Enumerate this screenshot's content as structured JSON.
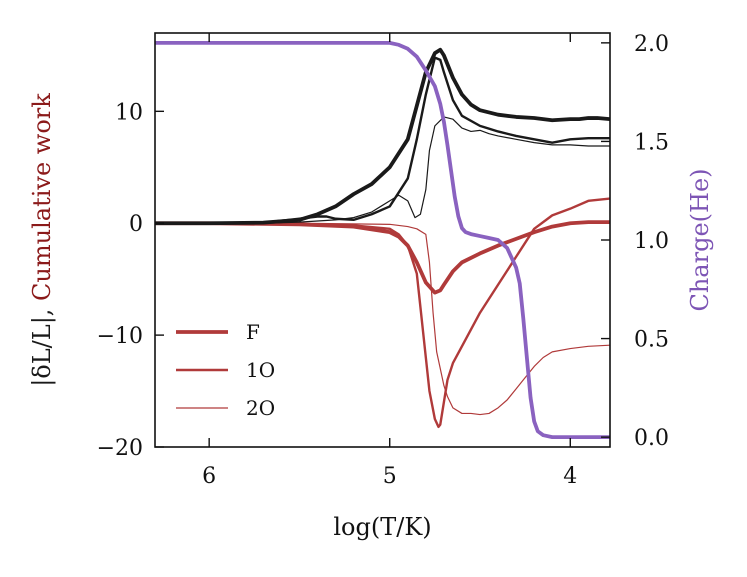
{
  "chart_data": {
    "type": "line",
    "xlabel": "log(T/K)",
    "ylabel_left_parts": [
      "|δL/L|",
      ", ",
      "Cumulative work"
    ],
    "ylabel_right": "Charge(He)",
    "xlim": [
      6.3,
      3.78
    ],
    "ylim_left": [
      -20,
      17
    ],
    "ylim_right": [
      -0.05,
      2.05
    ],
    "x_ticks": [
      6,
      5,
      4
    ],
    "x_tick_labels": [
      "6",
      "5",
      "4"
    ],
    "y_left_ticks": [
      10,
      0,
      -10,
      -20
    ],
    "y_left_tick_labels": [
      "10",
      "0",
      "−10",
      "−20"
    ],
    "y_right_ticks": [
      2.0,
      1.5,
      1.0,
      0.5,
      0.0
    ],
    "y_right_tick_labels": [
      "2.0",
      "1.5",
      "1.0",
      "0.5",
      "0.0"
    ],
    "colors": {
      "amplitude": "#1a1a1a",
      "work": "#b03a3a",
      "charge": "#8a62c0",
      "left_label_dark": "#1a1a1a",
      "left_label_red": "#8b1a1a",
      "right_label": "#7d55b5"
    },
    "legend": [
      {
        "label": "F",
        "width": 3.8
      },
      {
        "label": "1O",
        "width": 2.4
      },
      {
        "label": "2O",
        "width": 1.2
      }
    ],
    "series": [
      {
        "name": "F |dL/L|",
        "axis": "left",
        "kind": "amplitude",
        "width": 3.8,
        "x": [
          6.3,
          6.0,
          5.7,
          5.5,
          5.4,
          5.3,
          5.2,
          5.1,
          5.0,
          4.9,
          4.85,
          4.8,
          4.75,
          4.72,
          4.7,
          4.65,
          4.6,
          4.55,
          4.5,
          4.4,
          4.3,
          4.2,
          4.1,
          4.0,
          3.95,
          3.9,
          3.85,
          3.78
        ],
        "y": [
          0.0,
          0.0,
          0.05,
          0.3,
          0.8,
          1.5,
          2.6,
          3.5,
          5.0,
          7.5,
          10.5,
          13.5,
          15.2,
          15.5,
          15.0,
          13.0,
          11.5,
          10.6,
          10.1,
          9.7,
          9.5,
          9.4,
          9.2,
          9.3,
          9.3,
          9.4,
          9.4,
          9.3
        ]
      },
      {
        "name": "1O |dL/L|",
        "axis": "left",
        "kind": "amplitude",
        "width": 2.4,
        "x": [
          6.3,
          6.0,
          5.7,
          5.5,
          5.4,
          5.35,
          5.3,
          5.2,
          5.1,
          5.0,
          4.9,
          4.85,
          4.8,
          4.75,
          4.72,
          4.7,
          4.65,
          4.6,
          4.5,
          4.4,
          4.3,
          4.2,
          4.1,
          4.0,
          3.9,
          3.78
        ],
        "y": [
          0.0,
          0.0,
          0.05,
          0.4,
          0.6,
          0.6,
          0.4,
          0.3,
          0.8,
          1.5,
          4.0,
          7.5,
          11.5,
          14.8,
          14.6,
          13.5,
          11.0,
          9.6,
          8.7,
          8.2,
          7.8,
          7.5,
          7.2,
          7.5,
          7.6,
          7.6
        ]
      },
      {
        "name": "2O |dL/L|",
        "axis": "left",
        "kind": "amplitude",
        "width": 1.2,
        "x": [
          6.3,
          6.0,
          5.7,
          5.5,
          5.3,
          5.2,
          5.1,
          5.0,
          4.95,
          4.9,
          4.86,
          4.83,
          4.8,
          4.78,
          4.75,
          4.7,
          4.65,
          4.6,
          4.55,
          4.5,
          4.45,
          4.4,
          4.3,
          4.2,
          4.1,
          4.0,
          3.9,
          3.78
        ],
        "y": [
          0.0,
          0.0,
          0.0,
          0.1,
          0.3,
          0.5,
          1.0,
          2.0,
          2.5,
          2.0,
          0.5,
          0.8,
          3.0,
          6.5,
          8.7,
          9.5,
          9.3,
          8.5,
          8.2,
          8.3,
          8.0,
          7.8,
          7.5,
          7.2,
          7.0,
          7.0,
          6.9,
          6.9
        ]
      },
      {
        "name": "F work",
        "axis": "left",
        "kind": "work",
        "width": 3.8,
        "x": [
          6.3,
          6.0,
          5.5,
          5.2,
          5.0,
          4.95,
          4.9,
          4.85,
          4.8,
          4.75,
          4.72,
          4.7,
          4.65,
          4.6,
          4.5,
          4.4,
          4.3,
          4.2,
          4.1,
          4.0,
          3.9,
          3.78
        ],
        "y": [
          0.0,
          0.0,
          -0.1,
          -0.3,
          -0.8,
          -1.2,
          -2.0,
          -3.5,
          -5.3,
          -6.2,
          -6.0,
          -5.5,
          -4.3,
          -3.5,
          -2.7,
          -2.0,
          -1.4,
          -0.8,
          -0.3,
          0.0,
          0.1,
          0.1
        ]
      },
      {
        "name": "1O work",
        "axis": "left",
        "kind": "work",
        "width": 2.4,
        "x": [
          6.3,
          6.0,
          5.5,
          5.2,
          5.0,
          4.95,
          4.9,
          4.85,
          4.83,
          4.8,
          4.78,
          4.75,
          4.73,
          4.72,
          4.7,
          4.68,
          4.65,
          4.6,
          4.5,
          4.4,
          4.3,
          4.2,
          4.1,
          4.0,
          3.9,
          3.78
        ],
        "y": [
          0.0,
          0.0,
          -0.05,
          -0.2,
          -0.5,
          -1.0,
          -2.0,
          -4.5,
          -7.5,
          -12.0,
          -15.0,
          -17.5,
          -18.2,
          -18.0,
          -16.0,
          -14.0,
          -12.5,
          -11.0,
          -8.0,
          -5.5,
          -3.0,
          -0.5,
          0.7,
          1.3,
          2.0,
          2.2
        ]
      },
      {
        "name": "2O work",
        "axis": "left",
        "kind": "work",
        "width": 1.2,
        "x": [
          6.3,
          6.0,
          5.5,
          5.0,
          4.9,
          4.85,
          4.8,
          4.78,
          4.76,
          4.74,
          4.72,
          4.7,
          4.68,
          4.65,
          4.6,
          4.55,
          4.5,
          4.45,
          4.4,
          4.35,
          4.3,
          4.25,
          4.2,
          4.15,
          4.1,
          4.0,
          3.9,
          3.78
        ],
        "y": [
          0.0,
          0.0,
          0.0,
          -0.1,
          -0.3,
          -0.5,
          -1.0,
          -3.5,
          -8.0,
          -11.5,
          -13.0,
          -14.5,
          -15.5,
          -16.5,
          -17.0,
          -17.0,
          -17.1,
          -17.0,
          -16.5,
          -15.8,
          -14.8,
          -13.8,
          -12.8,
          -12.0,
          -11.5,
          -11.2,
          -11.0,
          -10.9
        ]
      },
      {
        "name": "Charge(He)",
        "axis": "right",
        "kind": "charge",
        "width": 3.8,
        "x": [
          6.3,
          6.0,
          5.5,
          5.2,
          5.0,
          4.95,
          4.9,
          4.85,
          4.8,
          4.75,
          4.72,
          4.7,
          4.68,
          4.66,
          4.64,
          4.62,
          4.6,
          4.58,
          4.55,
          4.5,
          4.45,
          4.4,
          4.35,
          4.3,
          4.28,
          4.26,
          4.24,
          4.22,
          4.2,
          4.18,
          4.15,
          4.1,
          4.0,
          3.9,
          3.78
        ],
        "y": [
          2.0,
          2.0,
          2.0,
          2.0,
          2.0,
          1.99,
          1.97,
          1.93,
          1.86,
          1.78,
          1.69,
          1.6,
          1.48,
          1.35,
          1.22,
          1.12,
          1.06,
          1.04,
          1.03,
          1.02,
          1.01,
          1.0,
          0.96,
          0.86,
          0.78,
          0.6,
          0.4,
          0.2,
          0.08,
          0.03,
          0.01,
          0.0,
          0.0,
          0.0,
          0.0
        ]
      }
    ]
  }
}
